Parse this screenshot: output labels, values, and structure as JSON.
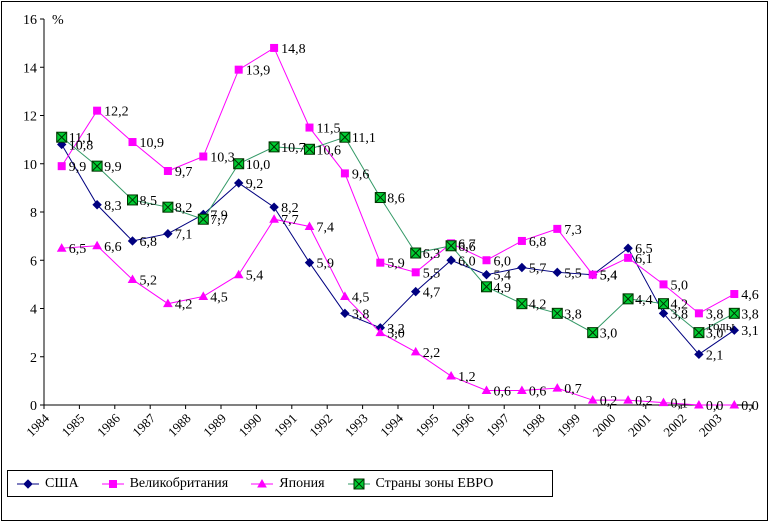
{
  "chart_data": {
    "type": "line",
    "unit_label": "%",
    "xlabel": "годы",
    "ylim": [
      0,
      16
    ],
    "yticks": [
      "0",
      "2",
      "4",
      "6",
      "8",
      "10",
      "12",
      "14",
      "16"
    ],
    "categories": [
      "1984",
      "1985",
      "1986",
      "1987",
      "1988",
      "1989",
      "1990",
      "1991",
      "1992",
      "1993",
      "1994",
      "1995",
      "1996",
      "1997",
      "1998",
      "1999",
      "2000",
      "2001",
      "2002",
      "2003"
    ],
    "grid": false,
    "legend_position": "bottom",
    "series": [
      {
        "name": "США",
        "color": "#000080",
        "marker": "diamond",
        "values": [
          10.8,
          8.3,
          6.8,
          7.1,
          7.9,
          9.2,
          8.2,
          5.9,
          3.8,
          3.2,
          4.7,
          6.0,
          5.4,
          5.7,
          5.5,
          5.4,
          6.5,
          3.8,
          2.1,
          3.1
        ],
        "labels": [
          "10,8",
          "8,3",
          "6,8",
          "7,1",
          "7,9",
          "9,2",
          "8,2",
          "5,9",
          "3,8",
          "3,2",
          "4,7",
          "6,0",
          "5,4",
          "5,7",
          "5,5",
          "5,4",
          "6,5",
          "3,8",
          "2,1",
          "3,1"
        ]
      },
      {
        "name": "Великобритания",
        "color": "#ff00ff",
        "marker": "square",
        "values": [
          9.9,
          12.2,
          10.9,
          9.7,
          10.3,
          13.9,
          14.8,
          11.5,
          9.6,
          5.9,
          5.5,
          6.7,
          6.0,
          6.8,
          7.3,
          5.4,
          6.1,
          5.0,
          3.8,
          4.6
        ],
        "labels": [
          "9,9",
          "12,2",
          "10,9",
          "9,7",
          "10,3",
          "13,9",
          "14,8",
          "11,5",
          "9,6",
          "5,9",
          "5,5",
          "6,7",
          "6,0",
          "6,8",
          "7,3",
          "5,4",
          "6,1",
          "5,0",
          "3,8",
          "4,6"
        ]
      },
      {
        "name": "Япония",
        "color": "#ff00ff",
        "marker": "triangle",
        "values": [
          6.5,
          6.6,
          5.2,
          4.2,
          4.5,
          5.4,
          7.7,
          7.4,
          4.5,
          3.0,
          2.2,
          1.2,
          0.6,
          0.6,
          0.7,
          0.2,
          0.2,
          0.1,
          0.0,
          0.0
        ],
        "labels": [
          "6,5",
          "6,6",
          "5,2",
          "4,2",
          "4,5",
          "5,4",
          "7,7",
          "7,4",
          "4,5",
          "3,0",
          "2,2",
          "1,2",
          "0,6",
          "0,6",
          "0,7",
          "0,2",
          "0,2",
          "0,1",
          "0,0",
          "0,0"
        ]
      },
      {
        "name": "Страны зоны ЕВРО",
        "color": "#339966",
        "marker": "xbox",
        "values": [
          11.1,
          9.9,
          8.5,
          8.2,
          7.7,
          10.0,
          10.7,
          10.6,
          11.1,
          8.6,
          6.3,
          6.6,
          4.9,
          4.2,
          3.8,
          3.0,
          4.4,
          4.2,
          3.0,
          3.8
        ],
        "labels": [
          "11,1",
          "9,9",
          "8,5",
          "8,2",
          "7,7",
          "10,0",
          "10,7",
          "10,6",
          "11,1",
          "8,6",
          "6,3",
          "6,6",
          "4,9",
          "4,2",
          "3,8",
          "3,0",
          "4,4",
          "4,2",
          "3,0",
          "3,8"
        ]
      }
    ]
  }
}
